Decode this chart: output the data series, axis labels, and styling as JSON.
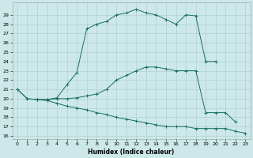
{
  "xlabel": "Humidex (Indice chaleur)",
  "xlim": [
    -0.5,
    23.5
  ],
  "ylim": [
    15.7,
    30.3
  ],
  "yticks": [
    16,
    17,
    18,
    19,
    20,
    21,
    22,
    23,
    24,
    25,
    26,
    27,
    28,
    29
  ],
  "xticks": [
    0,
    1,
    2,
    3,
    4,
    5,
    6,
    7,
    8,
    9,
    10,
    11,
    12,
    13,
    14,
    15,
    16,
    17,
    18,
    19,
    20,
    21,
    22,
    23
  ],
  "bg_color": "#cce8e8",
  "grid_color": "#aacccc",
  "line_color": "#1a7060",
  "line1_x": [
    0,
    1,
    2,
    3,
    4,
    5,
    6,
    7,
    8,
    9,
    10,
    11,
    12,
    13,
    14,
    15,
    16,
    17,
    18,
    19,
    20
  ],
  "line1_y": [
    21,
    20,
    19.9,
    19.9,
    20.1,
    21.5,
    22.8,
    27.5,
    28.0,
    28.3,
    29.0,
    29.2,
    29.6,
    29.2,
    29.0,
    28.5,
    28.0,
    29.0,
    28.9,
    24.0,
    24.0
  ],
  "line2_x": [
    0,
    1,
    2,
    3,
    4,
    5,
    6,
    7,
    8,
    9,
    10,
    11,
    12,
    13,
    14,
    15,
    16,
    17,
    18,
    19,
    20,
    21,
    22
  ],
  "line2_y": [
    21,
    20,
    19.9,
    19.9,
    20.0,
    20.0,
    20.1,
    20.3,
    20.5,
    21.0,
    22.0,
    22.5,
    23.0,
    23.4,
    23.4,
    23.2,
    23.0,
    23.0,
    23.0,
    18.5,
    18.5,
    18.5,
    17.5
  ],
  "line3_x": [
    2,
    3,
    4,
    5,
    6,
    7,
    8,
    9,
    10,
    11,
    12,
    13,
    14,
    15,
    16,
    17,
    18,
    19,
    20,
    21,
    22,
    23
  ],
  "line3_y": [
    19.9,
    19.8,
    19.5,
    19.2,
    19.0,
    18.8,
    18.5,
    18.3,
    18.0,
    17.8,
    17.6,
    17.4,
    17.2,
    17.0,
    17.0,
    17.0,
    16.8,
    16.8,
    16.8,
    16.8,
    16.5,
    16.3
  ]
}
